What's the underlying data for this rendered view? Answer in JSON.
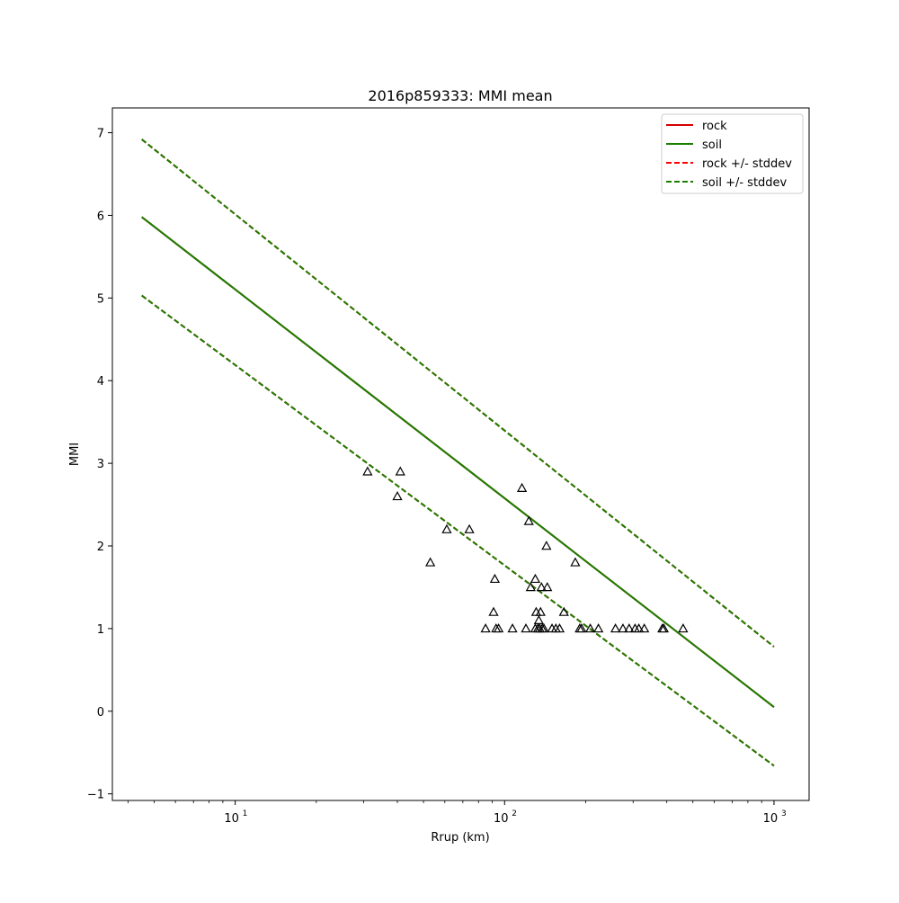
{
  "chart_data": {
    "type": "line",
    "title": "2016p859333: MMI mean",
    "xlabel": "Rrup (km)",
    "ylabel": "MMI",
    "xscale": "log",
    "xlim": [
      3.5,
      1350
    ],
    "ylim": [
      -1.08,
      7.3
    ],
    "grid": false,
    "legend_position": "top-right",
    "xticks": [
      {
        "value": 10,
        "label": "10",
        "exp": "1"
      },
      {
        "value": 100,
        "label": "10",
        "exp": "2"
      },
      {
        "value": 1000,
        "label": "10",
        "exp": "3"
      }
    ],
    "yticks": [
      -1,
      0,
      1,
      2,
      3,
      4,
      5,
      6,
      7
    ],
    "ytick_labels": [
      "−1",
      "0",
      "1",
      "2",
      "3",
      "4",
      "5",
      "6",
      "7"
    ],
    "series": [
      {
        "name": "rock",
        "style": "solid",
        "color": "#d40000",
        "x": [
          4.5,
          1000
        ],
        "y": [
          5.98,
          0.05
        ]
      },
      {
        "name": "soil",
        "style": "solid",
        "color": "#1a7f00",
        "x": [
          4.5,
          1000
        ],
        "y": [
          5.98,
          0.05
        ]
      },
      {
        "name": "rock +/- stddev",
        "style": "dashed",
        "color": "#ff0000",
        "x": [
          4.5,
          1000
        ],
        "y": [
          6.92,
          0.78
        ],
        "y_lower": [
          5.03,
          -0.66
        ]
      },
      {
        "name": "soil +/- stddev",
        "style": "dashed",
        "color": "#1a7f00",
        "x": [
          4.5,
          1000
        ],
        "y": [
          6.92,
          0.78
        ],
        "y_lower": [
          5.03,
          -0.66
        ]
      }
    ],
    "observations": {
      "marker": "triangle",
      "points": [
        [
          31,
          2.9
        ],
        [
          41,
          2.9
        ],
        [
          40,
          2.6
        ],
        [
          53,
          1.8
        ],
        [
          61,
          2.2
        ],
        [
          74,
          2.2
        ],
        [
          91,
          1.2
        ],
        [
          92,
          1.6
        ],
        [
          85,
          1.0
        ],
        [
          93,
          1.0
        ],
        [
          95,
          1.0
        ],
        [
          107,
          1.0
        ],
        [
          116,
          2.7
        ],
        [
          120,
          1.0
        ],
        [
          123,
          2.3
        ],
        [
          125,
          1.5
        ],
        [
          130,
          1.6
        ],
        [
          131,
          1.2
        ],
        [
          130,
          1.0
        ],
        [
          133,
          1.0
        ],
        [
          134,
          1.1
        ],
        [
          135,
          1.0
        ],
        [
          136,
          1.2
        ],
        [
          137,
          1.5
        ],
        [
          138,
          1.0
        ],
        [
          140,
          1.0
        ],
        [
          143,
          2.0
        ],
        [
          144,
          1.5
        ],
        [
          150,
          1.0
        ],
        [
          155,
          1.0
        ],
        [
          160,
          1.0
        ],
        [
          166,
          1.2
        ],
        [
          183,
          1.8
        ],
        [
          190,
          1.0
        ],
        [
          193,
          1.0
        ],
        [
          208,
          1.0
        ],
        [
          223,
          1.0
        ],
        [
          258,
          1.0
        ],
        [
          275,
          1.0
        ],
        [
          290,
          1.0
        ],
        [
          305,
          1.0
        ],
        [
          315,
          1.0
        ],
        [
          330,
          1.0
        ],
        [
          385,
          1.0
        ],
        [
          390,
          1.0
        ],
        [
          460,
          1.0
        ]
      ]
    }
  },
  "colors": {
    "rock": "#d40000",
    "soil": "#1a7f00",
    "rock_dashed": "#ff0000",
    "soil_dashed": "#1a7f00"
  }
}
